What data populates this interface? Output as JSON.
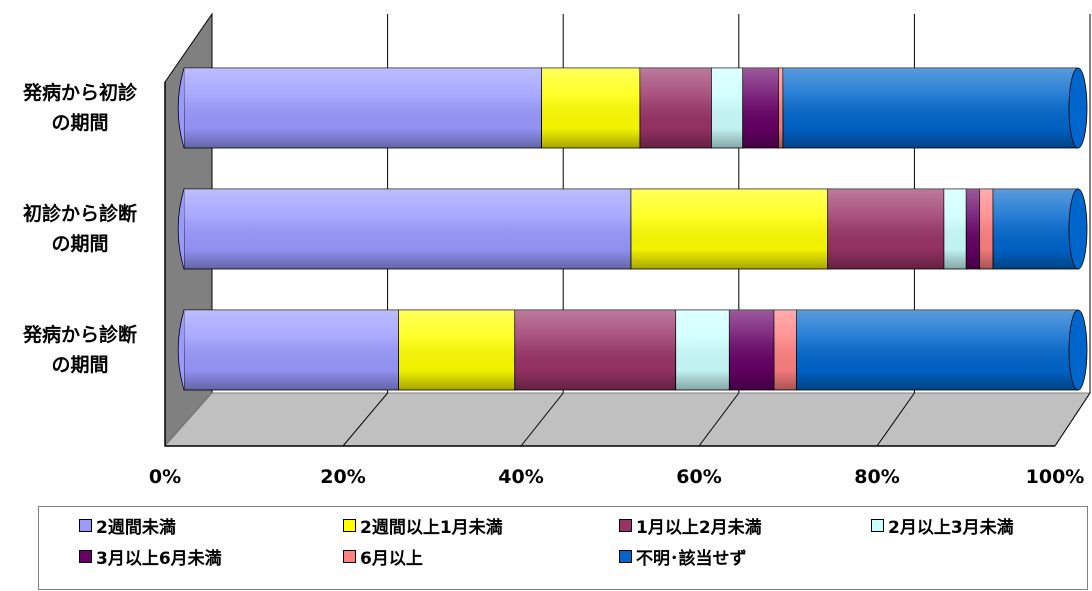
{
  "chart_data": {
    "type": "bar",
    "orientation": "horizontal",
    "stacked": "percent",
    "style": "3d-cylinder",
    "categories": [
      "発病から初診\nの期間",
      "初診から診断\nの期間",
      "発病から診断\nの期間"
    ],
    "series": [
      {
        "name": "2週間未満",
        "color": "#9999FF",
        "values": [
          40,
          50,
          24
        ]
      },
      {
        "name": "2週間以上1月未満",
        "color": "#FFFF00",
        "values": [
          11,
          22,
          13
        ]
      },
      {
        "name": "1月以上2月未満",
        "color": "#993366",
        "values": [
          8,
          13,
          18
        ]
      },
      {
        "name": "2月以上3月未満",
        "color": "#CCFFFF",
        "values": [
          3.5,
          2.5,
          6
        ]
      },
      {
        "name": "3月以上6月未満",
        "color": "#660066",
        "values": [
          4,
          1.5,
          5
        ]
      },
      {
        "name": "6月以上",
        "color": "#FF8080",
        "values": [
          0.5,
          1.5,
          2.5
        ]
      },
      {
        "name": "不明･該当せず",
        "color": "#0066CC",
        "values": [
          33,
          9.5,
          31.5
        ]
      }
    ],
    "x_ticks": [
      "0%",
      "20%",
      "40%",
      "60%",
      "80%",
      "100%"
    ],
    "xlim": [
      0,
      100
    ],
    "grid": true,
    "legend_position": "bottom"
  }
}
